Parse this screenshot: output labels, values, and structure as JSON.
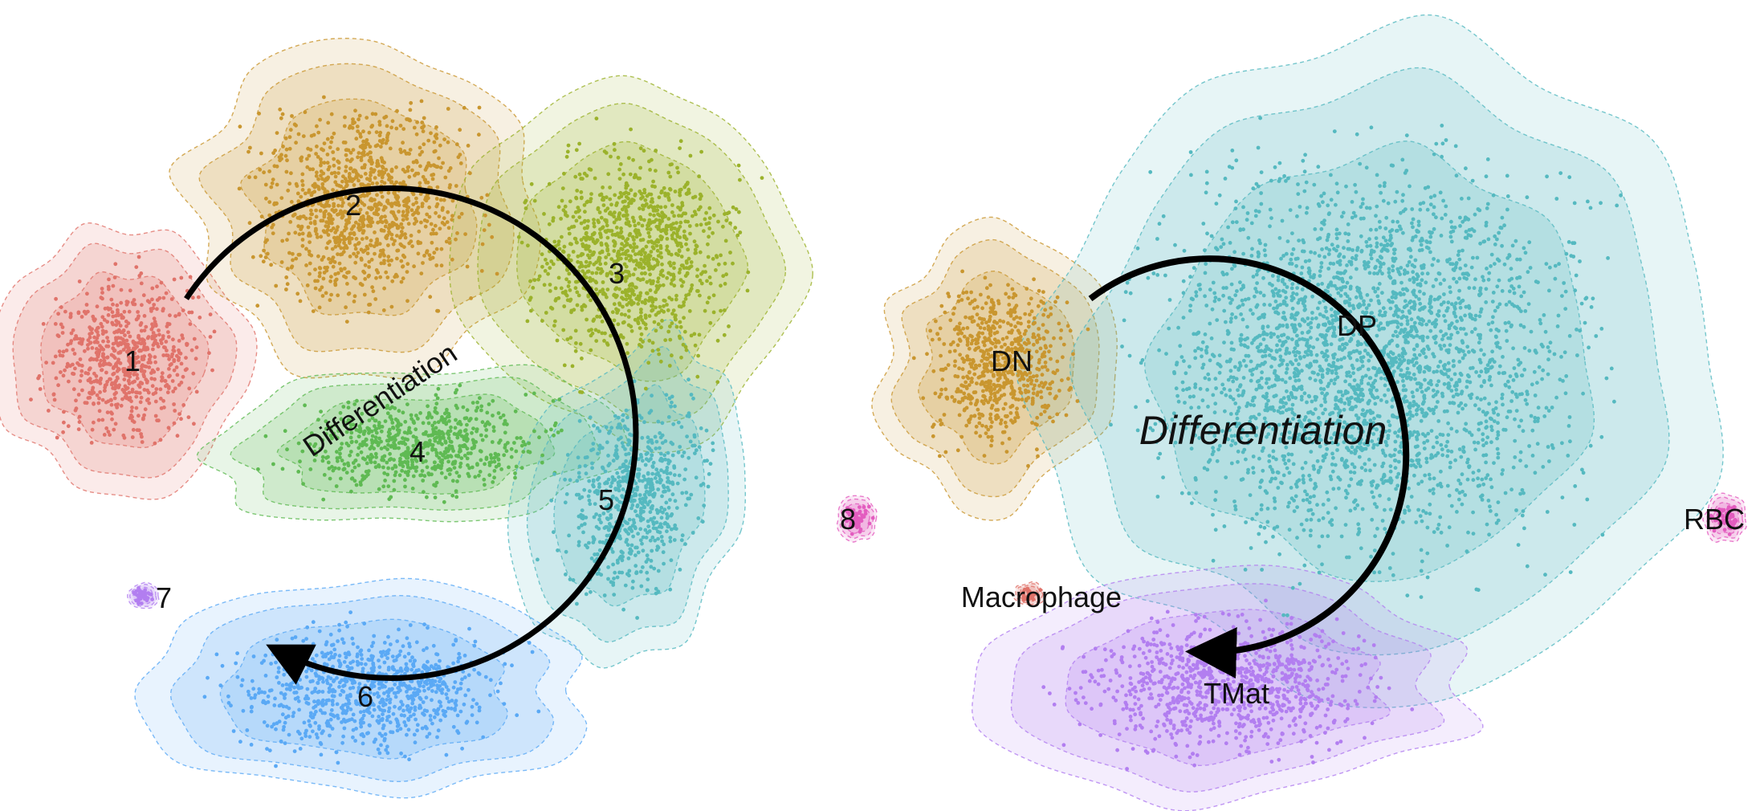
{
  "chart_data": [
    {
      "type": "scatter",
      "panel": "left",
      "description_mode": "embedding clusters with density contours",
      "clusters": [
        {
          "label": "1",
          "color": "#e0736a"
        },
        {
          "label": "2",
          "color": "#c9962f"
        },
        {
          "label": "3",
          "color": "#9bb22b"
        },
        {
          "label": "4",
          "color": "#5fba53"
        },
        {
          "label": "5",
          "color": "#55b9c0"
        },
        {
          "label": "6",
          "color": "#5aa9f5"
        },
        {
          "label": "7",
          "color": "#b27ef0"
        },
        {
          "label": "8",
          "color": "#e35cbf"
        }
      ],
      "annotations": [
        {
          "text": "Differentiation",
          "kind": "arrow-label"
        }
      ],
      "arrow_color": "#000000"
    },
    {
      "type": "scatter",
      "panel": "right",
      "description_mode": "embedding clusters with density contours",
      "clusters": [
        {
          "label": "DN",
          "color": "#c9962f"
        },
        {
          "label": "DP",
          "color": "#55b9c0"
        },
        {
          "label": "TMat",
          "color": "#b27ef0"
        },
        {
          "label": "Macrophage",
          "color": "#e0736a"
        },
        {
          "label": "RBC",
          "color": "#e35cbf"
        }
      ],
      "annotations": [
        {
          "text": "Differentiation",
          "kind": "arrow-label"
        }
      ],
      "arrow_color": "#000000"
    }
  ]
}
